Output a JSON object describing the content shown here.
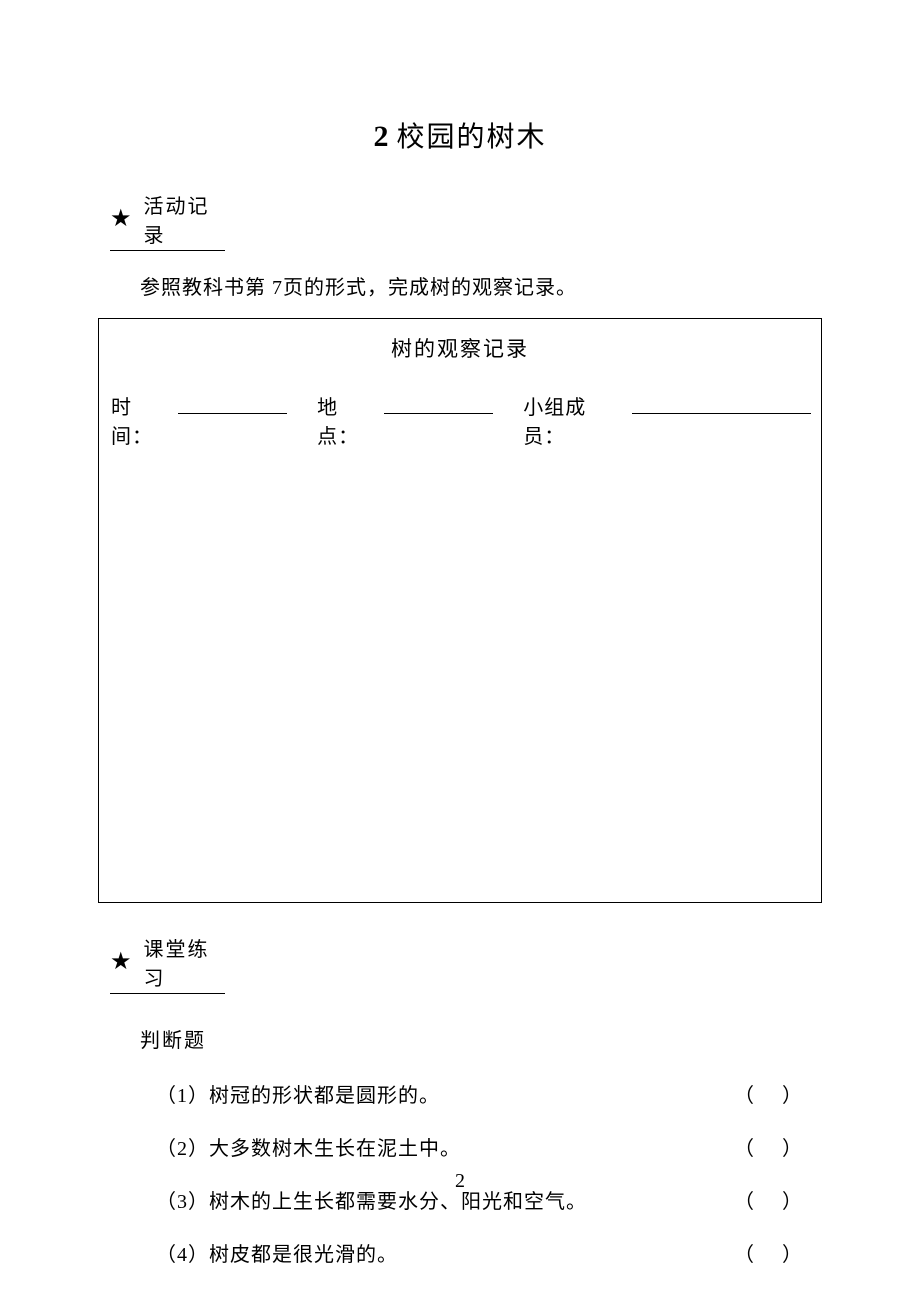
{
  "title": {
    "number": "2",
    "text": "校园的树木"
  },
  "section1": {
    "label": "活动记录",
    "instruction_prefix": "参照教科书第 ",
    "instruction_page": "7",
    "instruction_suffix": "页的形式，完成树的观察记录。"
  },
  "record_box": {
    "title": "树的观察记录",
    "field1": "时间：",
    "field2": "地点：",
    "field3": "小组成员："
  },
  "section2": {
    "label": "课堂练习",
    "subtitle": "判断题"
  },
  "questions": [
    "（1）树冠的形状都是圆形的。",
    "（2）大多数树木生长在泥土中。",
    "（3）树木的上生长都需要水分、阳光和空气。",
    "（4）树皮都是很光滑的。"
  ],
  "paren_left": "（",
  "paren_right": "）",
  "page_number": "2",
  "colors": {
    "background": "#ffffff",
    "text": "#000000",
    "border": "#000000"
  }
}
